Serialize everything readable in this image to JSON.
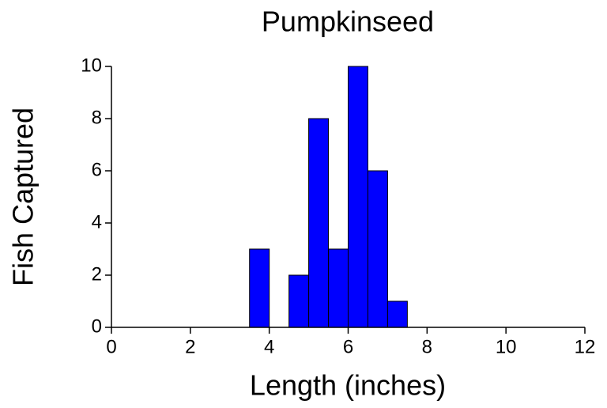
{
  "chart_data": {
    "type": "histogram",
    "title": "Pumpkinseed",
    "x_label": "Length (inches)",
    "y_label": "Fish Captured",
    "bins": [
      3.5,
      4,
      4.5,
      5,
      5.5,
      6,
      6.5,
      7,
      7.5
    ],
    "values": [
      3,
      0,
      2,
      8,
      3,
      10,
      6,
      1
    ],
    "color": "#0000ff",
    "xlim": [
      0,
      12
    ],
    "xticks": [
      0,
      2,
      4,
      6,
      8,
      10,
      12
    ],
    "ylim": [
      0,
      10
    ],
    "yticks": [
      0,
      2,
      4,
      6,
      8,
      10
    ],
    "grid": false
  }
}
